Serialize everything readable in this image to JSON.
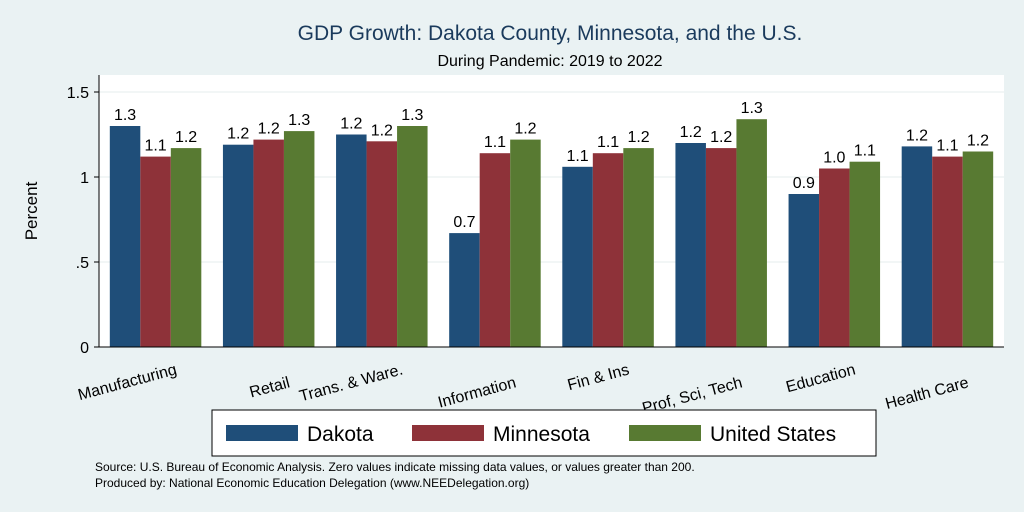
{
  "chart_data": {
    "type": "bar",
    "title": "GDP Growth: Dakota County, Minnesota, and the U.S.",
    "subtitle": "During Pandemic: 2019 to 2022",
    "ylabel": "Percent",
    "xlabel": "",
    "ylim": [
      0,
      1.6
    ],
    "yticks": [
      0,
      0.5,
      1,
      1.5
    ],
    "ytick_labels": [
      "0",
      ".5",
      "1",
      "1.5"
    ],
    "grid": true,
    "legend_position": "bottom",
    "categories": [
      "Manufacturing",
      "Retail",
      "Trans. & Ware.",
      "Information",
      "Fin & Ins",
      "Prof, Sci, Tech",
      "Education",
      "Health Care"
    ],
    "series": [
      {
        "name": "Dakota",
        "color": "#1f4e79",
        "values": [
          1.3,
          1.19,
          1.25,
          0.67,
          1.06,
          1.2,
          0.9,
          1.18
        ],
        "labels": [
          "1.3",
          "1.2",
          "1.2",
          "0.7",
          "1.1",
          "1.2",
          "0.9",
          "1.2"
        ]
      },
      {
        "name": "Minnesota",
        "color": "#8e3239",
        "values": [
          1.12,
          1.22,
          1.21,
          1.14,
          1.14,
          1.17,
          1.05,
          1.12
        ],
        "labels": [
          "1.1",
          "1.2",
          "1.2",
          "1.1",
          "1.1",
          "1.2",
          "1.0",
          "1.1"
        ]
      },
      {
        "name": "United States",
        "color": "#587a32",
        "values": [
          1.17,
          1.27,
          1.3,
          1.22,
          1.17,
          1.34,
          1.09,
          1.15
        ],
        "labels": [
          "1.2",
          "1.3",
          "1.3",
          "1.2",
          "1.2",
          "1.3",
          "1.1",
          "1.2"
        ]
      }
    ]
  },
  "footer": {
    "source": "Source: U.S. Bureau of Economic Analysis. Zero values indicate missing data values, or values greater than 200.",
    "produced_by": "Produced by: National Economic Education Delegation (www.NEEDelegation.org)"
  },
  "colors": {
    "background": "#eaf2f3",
    "plot_background": "#ffffff",
    "title": "#1a3a5c"
  }
}
